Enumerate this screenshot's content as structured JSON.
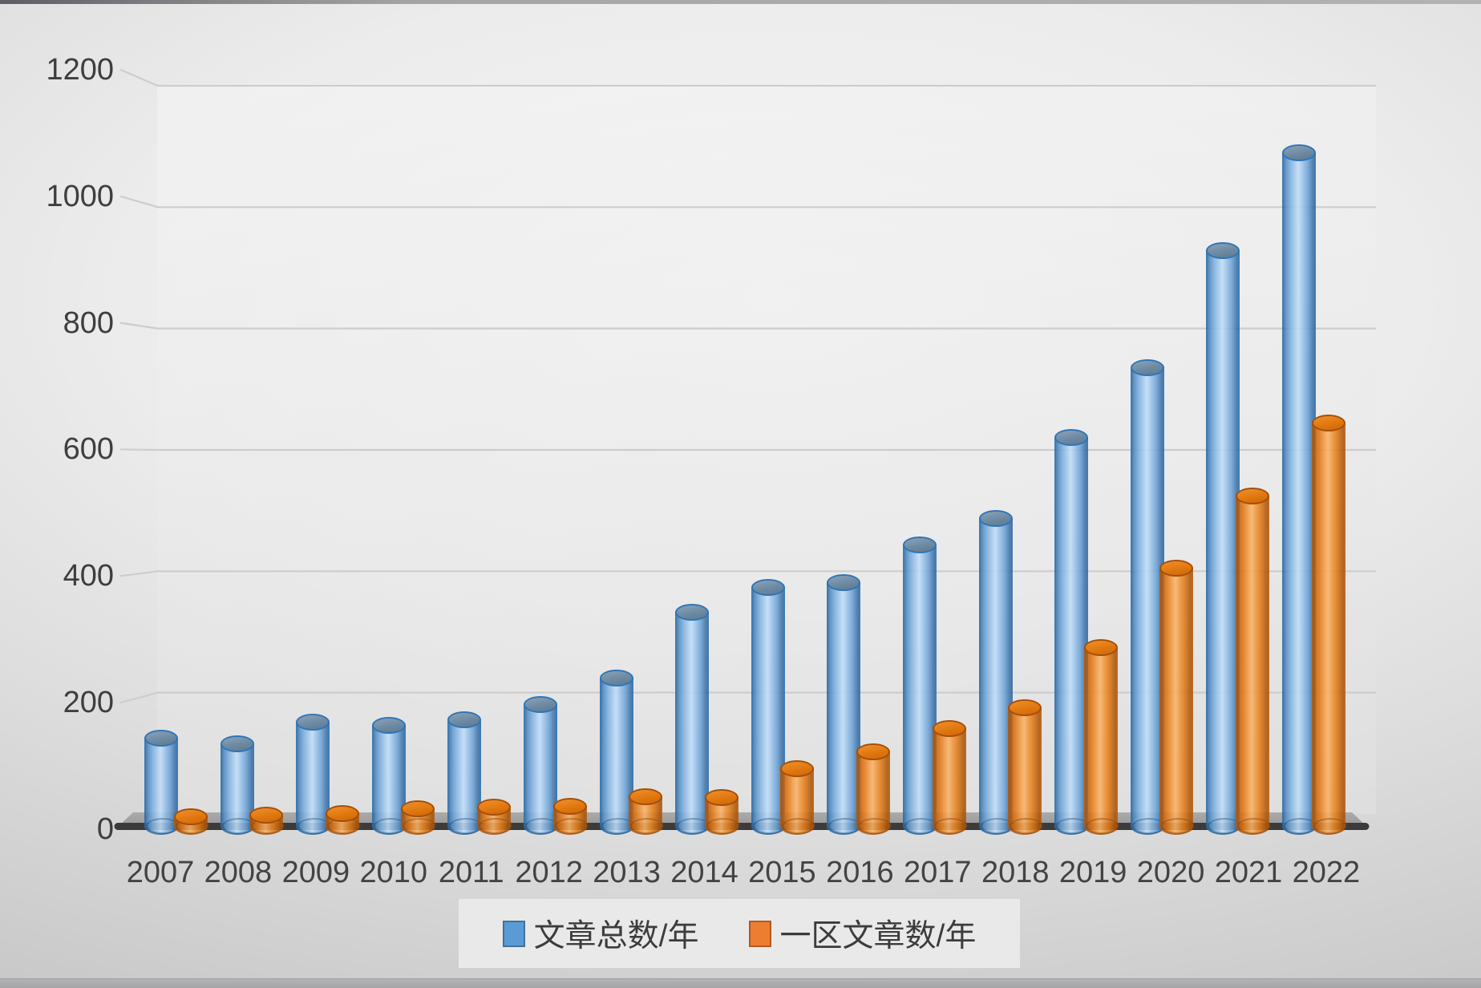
{
  "chart_data": {
    "type": "bar",
    "subtype": "3d-cylinder",
    "title": "",
    "xlabel": "",
    "ylabel": "",
    "categories": [
      "2007",
      "2008",
      "2009",
      "2010",
      "2011",
      "2012",
      "2013",
      "2014",
      "2015",
      "2016",
      "2017",
      "2018",
      "2019",
      "2020",
      "2021",
      "2022"
    ],
    "series": [
      {
        "name": "文章总数/年",
        "color": "#5b9bd5",
        "border": "#41719c",
        "values": [
          140,
          130,
          165,
          160,
          168,
          193,
          235,
          338,
          378,
          385,
          445,
          487,
          615,
          725,
          910,
          1065
        ]
      },
      {
        "name": "一区文章数/年",
        "color": "#ed7d31",
        "border": "#ae5a21",
        "values": [
          15,
          18,
          20,
          28,
          30,
          32,
          47,
          46,
          91,
          118,
          154,
          188,
          283,
          408,
          522,
          638
        ]
      }
    ],
    "ylim": [
      0,
      1200
    ],
    "yticks": [
      0,
      200,
      400,
      600,
      800,
      1000,
      1200
    ],
    "ytick_labels": [
      "0",
      "200",
      "400",
      "600",
      "800",
      "1000",
      "1200"
    ],
    "grid": true,
    "legend_position": "bottom",
    "background": "gray-gradient-slide",
    "gridline_color": "#cdcdcd",
    "floor_color": "#a0a0a0",
    "axis_line_color": "#3b3b3b",
    "text_color": "#3e3e3e"
  }
}
